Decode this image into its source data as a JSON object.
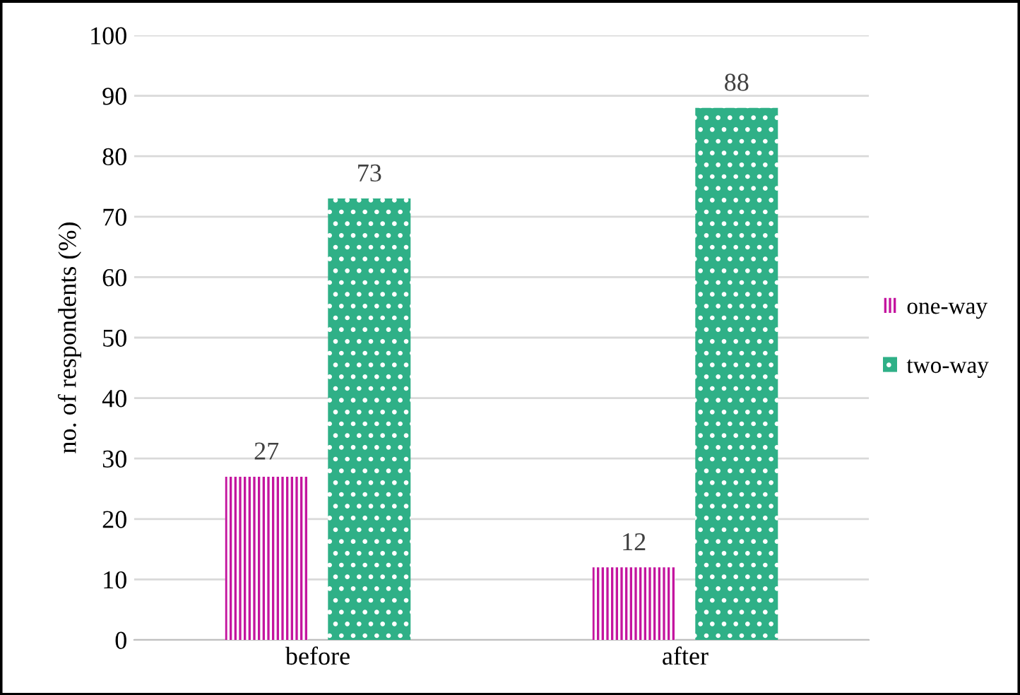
{
  "chart_data": {
    "type": "bar",
    "ylabel": "no. of respondents (%)",
    "categories": [
      "before",
      "after"
    ],
    "series": [
      {
        "name": "one-way",
        "color": "#c4159f",
        "values": [
          27,
          12
        ]
      },
      {
        "name": "two-way",
        "color": "#2fb087",
        "values": [
          73,
          88
        ]
      }
    ],
    "ylim": [
      0,
      100
    ],
    "yticks": [
      0,
      10,
      20,
      30,
      40,
      50,
      60,
      70,
      80,
      90,
      100
    ],
    "grid": "y",
    "legend": "right",
    "data_labels": true
  }
}
